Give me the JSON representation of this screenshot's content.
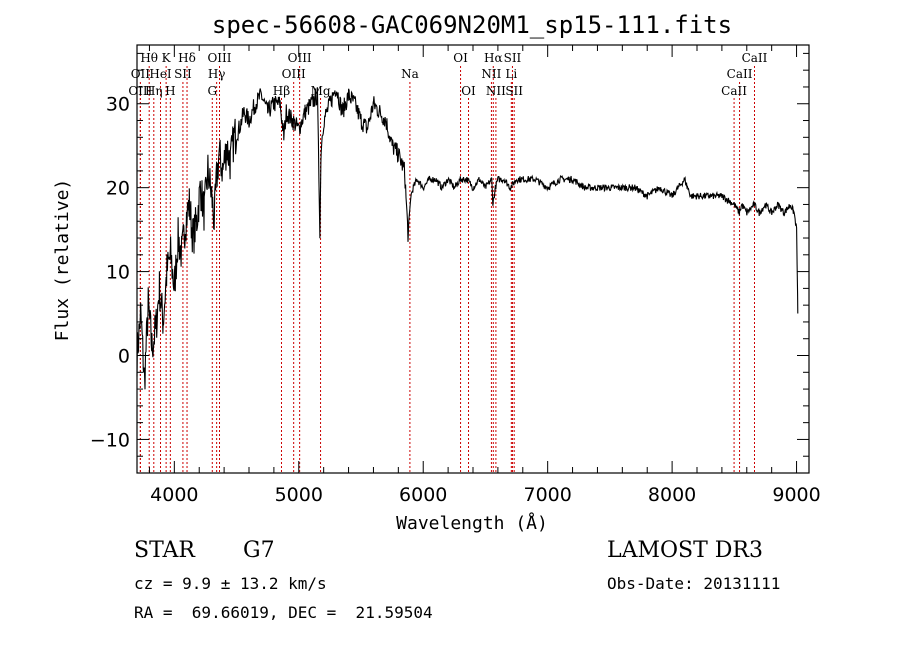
{
  "chart_data": {
    "type": "line",
    "title": "spec-56608-GAC069N20M1_sp15-111.fits",
    "xlabel": "Wavelength (Å)",
    "ylabel": "Flux (relative)",
    "xlim": [
      3700,
      9100
    ],
    "ylim": [
      -14,
      37
    ],
    "xticks": [
      4000,
      5000,
      6000,
      7000,
      8000,
      9000
    ],
    "yticks": [
      -10,
      0,
      10,
      20,
      30
    ],
    "grid": false,
    "spectrum": {
      "x": [
        3700,
        3730,
        3760,
        3790,
        3820,
        3850,
        3880,
        3910,
        3940,
        3970,
        4000,
        4030,
        4060,
        4090,
        4120,
        4150,
        4180,
        4210,
        4240,
        4270,
        4300,
        4320,
        4340,
        4360,
        4390,
        4420,
        4450,
        4480,
        4520,
        4560,
        4600,
        4650,
        4700,
        4750,
        4800,
        4850,
        4880,
        4900,
        4950,
        5000,
        5050,
        5100,
        5150,
        5170,
        5180,
        5200,
        5250,
        5300,
        5350,
        5400,
        5450,
        5500,
        5550,
        5600,
        5650,
        5700,
        5750,
        5800,
        5850,
        5880,
        5900,
        5920,
        5950,
        6000,
        6050,
        6100,
        6150,
        6200,
        6250,
        6300,
        6350,
        6400,
        6450,
        6500,
        6550,
        6560,
        6580,
        6600,
        6650,
        6700,
        6750,
        6800,
        6900,
        7000,
        7100,
        7200,
        7300,
        7400,
        7500,
        7600,
        7700,
        7800,
        7900,
        8000,
        8050,
        8100,
        8150,
        8200,
        8300,
        8400,
        8500,
        8540,
        8560,
        8600,
        8660,
        8700,
        8750,
        8800,
        8850,
        8900,
        8950,
        8980,
        9000,
        9010
      ],
      "y": [
        0,
        5,
        -3,
        6,
        1,
        3,
        8,
        4,
        10,
        12,
        8,
        14,
        12,
        16,
        18,
        14,
        16,
        20,
        17,
        22,
        19,
        16,
        21,
        24,
        22,
        25,
        23,
        26,
        27,
        29,
        28,
        30,
        31,
        29,
        30,
        30,
        26,
        29,
        28,
        27,
        29,
        30,
        31,
        15,
        25,
        28,
        30,
        32,
        29,
        31,
        30,
        28,
        27,
        30,
        29,
        28,
        25,
        24,
        22,
        14,
        19,
        20,
        21,
        20,
        21,
        21,
        20,
        21,
        20,
        21,
        21,
        20,
        21,
        20,
        21,
        18,
        20,
        21,
        21,
        20,
        21,
        21,
        21,
        20,
        21,
        21,
        20,
        20,
        20,
        20,
        20,
        19,
        20,
        19,
        20,
        21,
        19,
        19,
        19,
        19,
        18,
        17,
        18,
        17,
        18,
        17,
        18,
        17,
        18,
        17,
        18,
        17,
        15,
        5
      ]
    },
    "lines": [
      {
        "label": "Hθ",
        "x": 3798,
        "row": 1
      },
      {
        "label": "OII",
        "x": 3727,
        "row": 2
      },
      {
        "label": "OIII",
        "x": 3727,
        "row": 3
      },
      {
        "label": "K",
        "x": 3934,
        "row": 1
      },
      {
        "label": "HeI",
        "x": 3889,
        "row": 2
      },
      {
        "label": "Hη",
        "x": 3835,
        "row": 3
      },
      {
        "label": "SII",
        "x": 4069,
        "row": 2
      },
      {
        "label": "H",
        "x": 3968,
        "row": 3
      },
      {
        "label": "Hδ",
        "x": 4102,
        "row": 1
      },
      {
        "label": "OIII",
        "x": 4363,
        "row": 1
      },
      {
        "label": "Hγ",
        "x": 4340,
        "row": 2
      },
      {
        "label": "G",
        "x": 4305,
        "row": 3
      },
      {
        "label": "OIII",
        "x": 5007,
        "row": 1
      },
      {
        "label": "OIII",
        "x": 4959,
        "row": 2
      },
      {
        "label": "Hβ",
        "x": 4861,
        "row": 3
      },
      {
        "label": "Mg",
        "x": 5175,
        "row": 3
      },
      {
        "label": "Na",
        "x": 5893,
        "row": 2
      },
      {
        "label": "OI",
        "x": 6300,
        "row": 1
      },
      {
        "label": "OI",
        "x": 6364,
        "row": 3
      },
      {
        "label": "Hα",
        "x": 6563,
        "row": 1
      },
      {
        "label": "NII",
        "x": 6548,
        "row": 2
      },
      {
        "label": "NII",
        "x": 6584,
        "row": 3
      },
      {
        "label": "SII",
        "x": 6717,
        "row": 1
      },
      {
        "label": "Li",
        "x": 6708,
        "row": 2
      },
      {
        "label": "SII",
        "x": 6731,
        "row": 3
      },
      {
        "label": "CaII",
        "x": 8662,
        "row": 1
      },
      {
        "label": "CaII",
        "x": 8542,
        "row": 2
      },
      {
        "label": "CaII",
        "x": 8498,
        "row": 3
      }
    ]
  },
  "info": {
    "class": "STAR",
    "subclass": "G7",
    "survey": "LAMOST DR3",
    "cz": "cz = 9.9 ± 13.2 km/s",
    "obs_date": "Obs-Date: 20131111",
    "coords": "RA =  69.66019, DEC =  21.59504"
  },
  "colors": {
    "line_marker": "#cc0000",
    "spectrum": "#000000"
  }
}
